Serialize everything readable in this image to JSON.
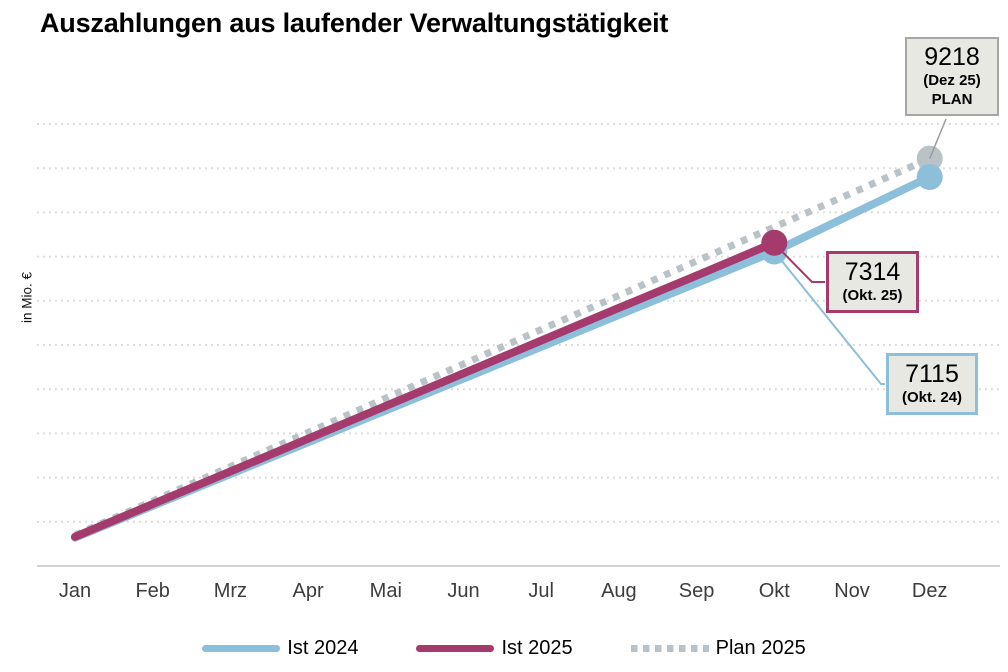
{
  "title": "Auszahlungen aus laufender Verwaltungstätigkeit",
  "ylabel": "in Mio. €",
  "colors": {
    "ist2024": "#8bbfda",
    "ist2025": "#a53a6d",
    "plan2025": "#b9c2c6",
    "gridline": "#d9d9d9",
    "axis_line": "#d3d3d3",
    "annotation_fill": "#e8e8e3",
    "annotation_border_gray": "#a6a6a6",
    "leader_gray": "#9b9b9b",
    "title_text": "#000000",
    "axis_label_text": "#3c3c3c"
  },
  "legend": [
    {
      "label": "Ist 2024",
      "color": "#8bbfda",
      "style": "solid"
    },
    {
      "label": "Ist 2025",
      "color": "#a53a6d",
      "style": "solid"
    },
    {
      "label": "Plan 2025",
      "color": "#b9c2c6",
      "style": "dotted"
    }
  ],
  "chart_data": {
    "type": "line",
    "title": "Auszahlungen aus laufender Verwaltungstätigkeit",
    "xlabel": "",
    "ylabel": "in Mio. €",
    "categories": [
      "Jan",
      "Feb",
      "Mrz",
      "Apr",
      "Mai",
      "Jun",
      "Jul",
      "Aug",
      "Sep",
      "Okt",
      "Nov",
      "Dez"
    ],
    "ylim": [
      0,
      10500
    ],
    "gridlines_every": 1000,
    "grid": "dotted-horizontal",
    "legend_position": "bottom-center",
    "series": [
      {
        "name": "Ist 2024",
        "style": "solid",
        "color": "#8bbfda",
        "values": [
          640,
          1360,
          2080,
          2800,
          3520,
          4240,
          4960,
          5680,
          6400,
          7115,
          7960,
          8800
        ],
        "markers": [
          9,
          11
        ]
      },
      {
        "name": "Ist 2025",
        "style": "solid",
        "color": "#a53a6d",
        "values": [
          660,
          1400,
          2140,
          2880,
          3620,
          4360,
          5100,
          5840,
          6570,
          7314
        ],
        "markers": [
          9
        ]
      },
      {
        "name": "Plan 2025",
        "style": "dotted",
        "color": "#b9c2c6",
        "values": [
          700,
          1470,
          2250,
          3020,
          3800,
          4570,
          5350,
          6120,
          6900,
          7670,
          8440,
          9218
        ],
        "markers": [
          11
        ]
      }
    ],
    "annotations": [
      {
        "value": "9218",
        "sublabel": "(Dez 25)",
        "tag": "PLAN",
        "series": "Plan 2025",
        "month": "Dez"
      },
      {
        "value": "7314",
        "sublabel": "(Okt. 25)",
        "series": "Ist 2025",
        "month": "Okt"
      },
      {
        "value": "7115",
        "sublabel": "(Okt. 24)",
        "series": "Ist 2024",
        "month": "Okt"
      }
    ]
  }
}
